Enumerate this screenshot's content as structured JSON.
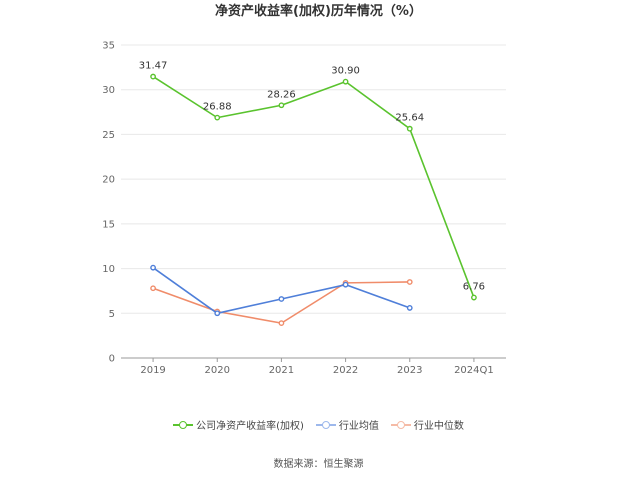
{
  "chart_data": {
    "type": "line",
    "title": "净资产收益率(加权)历年情况（%）",
    "categories": [
      "2019",
      "2020",
      "2021",
      "2022",
      "2023",
      "2024Q1"
    ],
    "ylim": [
      0,
      35
    ],
    "yticks": [
      0,
      5,
      10,
      15,
      20,
      25,
      30,
      35
    ],
    "grid": true,
    "legend_position": "bottom",
    "series": [
      {
        "name": "公司净资产收益率(加权)",
        "color": "#5ac32e",
        "values": [
          31.47,
          26.88,
          28.26,
          30.9,
          25.64,
          6.76
        ],
        "labels": [
          "31.47",
          "26.88",
          "28.26",
          "30.90",
          "25.64",
          "6.76"
        ]
      },
      {
        "name": "行业均值",
        "color": "#4f7fd9",
        "values": [
          10.1,
          5.0,
          6.6,
          8.2,
          5.6,
          null
        ]
      },
      {
        "name": "行业中位数",
        "color": "#f08c6a",
        "values": [
          7.8,
          5.2,
          3.9,
          8.4,
          8.5,
          null
        ]
      }
    ]
  },
  "source_text": "数据来源：恒生聚源"
}
